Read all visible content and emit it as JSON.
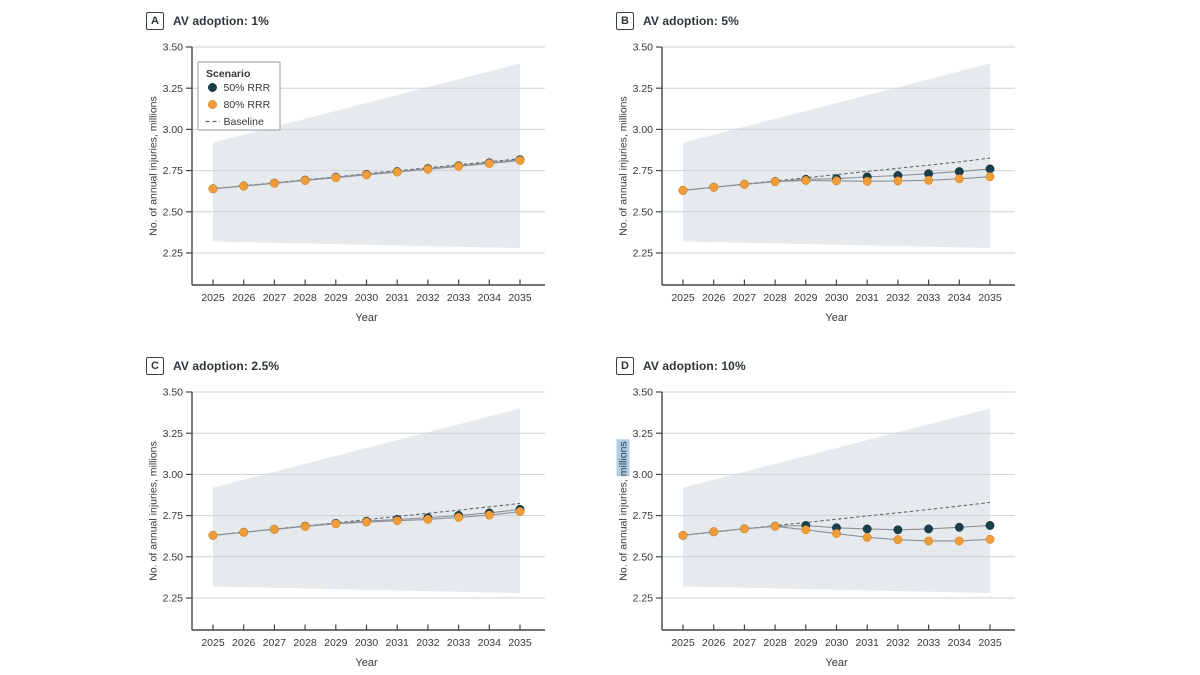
{
  "colors": {
    "rrr50": "#1a3f4b",
    "rrr50_stroke": "#102e38",
    "rrr80": "#f09c38",
    "rrr80_stroke": "#d1832a",
    "baseline": "#5f6a70",
    "series_line": "#8b9297",
    "band": "#e7eaed",
    "grid": "#cdd2d6",
    "axis": "#3f474c",
    "text": "#33393d",
    "selection_highlight": "#aecfe6",
    "legend_border": "#a6acb0"
  },
  "chart_data": {
    "type": "line",
    "x": [
      2025,
      2026,
      2027,
      2028,
      2029,
      2030,
      2031,
      2032,
      2033,
      2034,
      2035
    ],
    "xlabel": "Year",
    "ylabel": "No. of annual injuries, millions",
    "ylim": [
      2.07,
      3.55
    ],
    "yticks": [
      3.5,
      3.25,
      3.0,
      2.75,
      2.5,
      2.25
    ],
    "ytick_labels": [
      "3.50",
      "3.25",
      "3.00",
      "2.75",
      "2.50",
      "2.25"
    ],
    "xtick_labels": [
      "2025",
      "2026",
      "2027",
      "2028",
      "2029",
      "2030",
      "2031",
      "2032",
      "2033",
      "2034",
      "2035"
    ],
    "grid": true,
    "band": {
      "name": "uncertainty-band",
      "upper_start": 2.92,
      "upper_end": 3.4,
      "lower_start": 2.32,
      "lower_end": 2.28
    },
    "legend": {
      "shown_in_panel": "A",
      "position": "upper-left",
      "title": "Scenario",
      "items": [
        {
          "key": "rrr50",
          "label": "50% RRR",
          "marker": "dot"
        },
        {
          "key": "rrr80",
          "label": "80% RRR",
          "marker": "dot"
        },
        {
          "key": "baseline",
          "label": "Baseline",
          "marker": "dashes"
        }
      ]
    },
    "panels": [
      {
        "label": "A",
        "title": "AV adoption: 1%",
        "has_legend": true,
        "ylabel_selected_word": null,
        "series": {
          "baseline": [
            2.64,
            2.658,
            2.676,
            2.694,
            2.712,
            2.731,
            2.749,
            2.767,
            2.785,
            2.804,
            2.822
          ],
          "rrr50": [
            2.64,
            2.657,
            2.674,
            2.692,
            2.71,
            2.727,
            2.744,
            2.762,
            2.779,
            2.797,
            2.816
          ],
          "rrr80": [
            2.64,
            2.656,
            2.673,
            2.69,
            2.707,
            2.724,
            2.741,
            2.758,
            2.776,
            2.793,
            2.811
          ]
        }
      },
      {
        "label": "B",
        "title": "AV adoption: 5%",
        "has_legend": false,
        "ylabel_selected_word": null,
        "series": {
          "baseline": [
            2.63,
            2.649,
            2.668,
            2.687,
            2.706,
            2.726,
            2.745,
            2.764,
            2.783,
            2.803,
            2.826
          ],
          "rrr50": [
            2.63,
            2.649,
            2.667,
            2.684,
            2.697,
            2.701,
            2.712,
            2.72,
            2.731,
            2.744,
            2.76
          ],
          "rrr80": [
            2.63,
            2.649,
            2.667,
            2.683,
            2.69,
            2.688,
            2.685,
            2.687,
            2.691,
            2.7,
            2.713
          ]
        }
      },
      {
        "label": "C",
        "title": "AV adoption: 2.5%",
        "has_legend": false,
        "ylabel_selected_word": null,
        "series": {
          "baseline": [
            2.63,
            2.649,
            2.668,
            2.687,
            2.706,
            2.726,
            2.745,
            2.764,
            2.783,
            2.803,
            2.824
          ],
          "rrr50": [
            2.63,
            2.649,
            2.667,
            2.686,
            2.703,
            2.716,
            2.727,
            2.737,
            2.751,
            2.766,
            2.788
          ],
          "rrr80": [
            2.63,
            2.649,
            2.667,
            2.684,
            2.7,
            2.711,
            2.719,
            2.727,
            2.739,
            2.753,
            2.774
          ]
        }
      },
      {
        "label": "D",
        "title": "AV adoption: 10%",
        "has_legend": false,
        "ylabel_selected_word": "millions",
        "series": {
          "baseline": [
            2.63,
            2.65,
            2.67,
            2.689,
            2.708,
            2.728,
            2.748,
            2.767,
            2.787,
            2.808,
            2.83
          ],
          "rrr50": [
            2.63,
            2.652,
            2.67,
            2.686,
            2.69,
            2.676,
            2.669,
            2.664,
            2.669,
            2.679,
            2.69
          ],
          "rrr80": [
            2.63,
            2.652,
            2.67,
            2.685,
            2.664,
            2.641,
            2.618,
            2.604,
            2.596,
            2.596,
            2.606
          ]
        }
      }
    ]
  }
}
